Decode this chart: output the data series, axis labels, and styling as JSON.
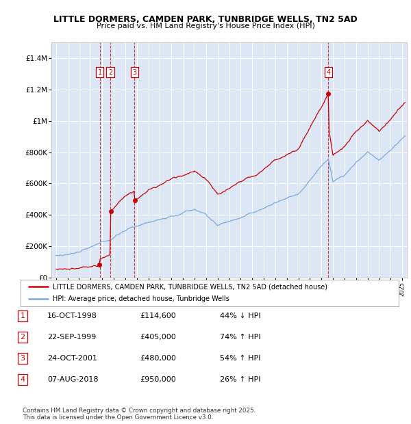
{
  "title_line1": "LITTLE DORMERS, CAMDEN PARK, TUNBRIDGE WELLS, TN2 5AD",
  "title_line2": "Price paid vs. HM Land Registry's House Price Index (HPI)",
  "bg_color": "#dce6f5",
  "red_line_color": "#cc0000",
  "blue_line_color": "#7aaadd",
  "ylim": [
    0,
    1500000
  ],
  "yticks": [
    0,
    200000,
    400000,
    600000,
    800000,
    1000000,
    1200000,
    1400000
  ],
  "ytick_labels": [
    "£0",
    "£200K",
    "£400K",
    "£600K",
    "£800K",
    "£1M",
    "£1.2M",
    "£1.4M"
  ],
  "legend_red": "LITTLE DORMERS, CAMDEN PARK, TUNBRIDGE WELLS, TN2 5AD (detached house)",
  "legend_blue": "HPI: Average price, detached house, Tunbridge Wells",
  "transactions": [
    {
      "num": 1,
      "date": "16-OCT-1998",
      "price": 114600,
      "pct": "44%",
      "dir": "↓",
      "vs": "HPI"
    },
    {
      "num": 2,
      "date": "22-SEP-1999",
      "price": 405000,
      "pct": "74%",
      "dir": "↑",
      "vs": "HPI"
    },
    {
      "num": 3,
      "date": "24-OCT-2001",
      "price": 480000,
      "pct": "54%",
      "dir": "↑",
      "vs": "HPI"
    },
    {
      "num": 4,
      "date": "07-AUG-2018",
      "price": 950000,
      "pct": "26%",
      "dir": "↑",
      "vs": "HPI"
    }
  ],
  "sale_years": [
    1998.79,
    1999.72,
    2001.81,
    2018.6
  ],
  "sale_prices": [
    114600,
    405000,
    480000,
    950000
  ],
  "footnote": "Contains HM Land Registry data © Crown copyright and database right 2025.\nThis data is licensed under the Open Government Licence v3.0."
}
